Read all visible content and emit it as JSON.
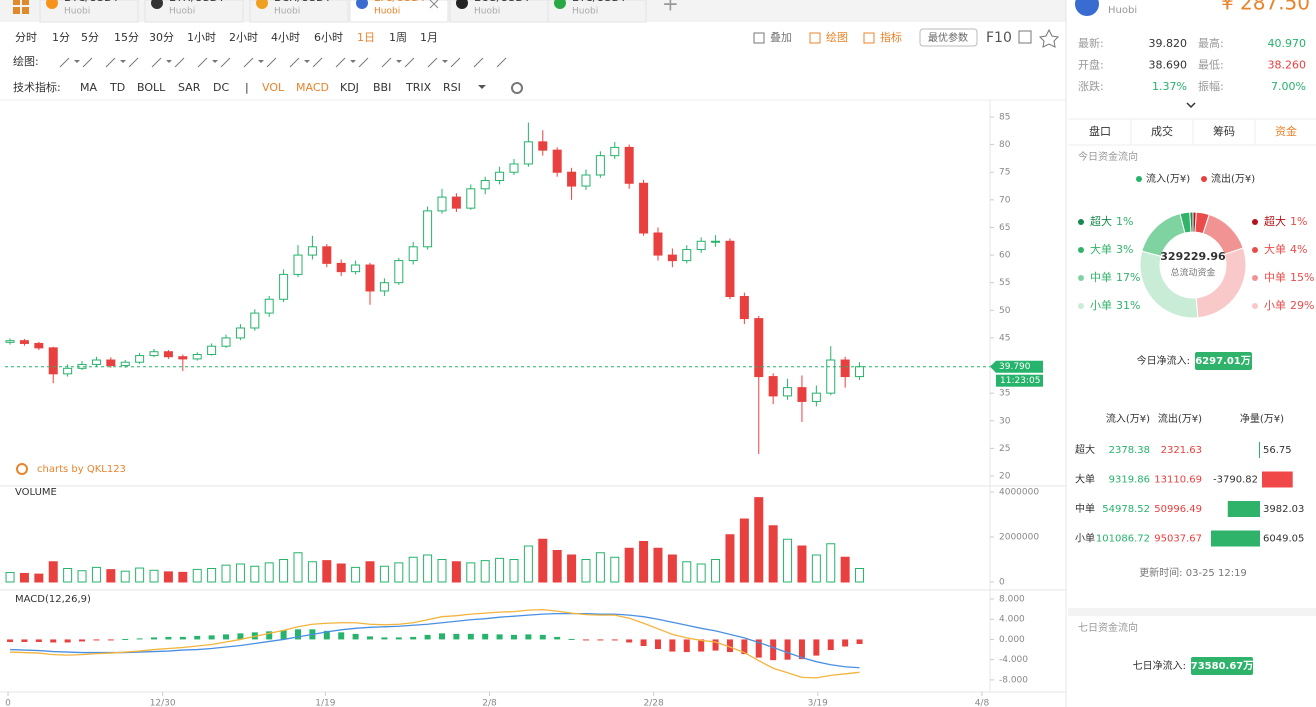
{
  "tabs": [
    {
      "name": "BTC/USDT",
      "exchange": "Huobi"
    },
    {
      "name": "ETH/USDT",
      "exchange": "Huobi"
    },
    {
      "name": "BCH/USDT",
      "exchange": "Huobi"
    },
    {
      "name": "LTC/USDT",
      "exchange": "Huobi"
    },
    {
      "name": "EOS/USDT",
      "exchange": "Huobi"
    },
    {
      "name": "ETC/USDT",
      "exchange": "Huobi"
    }
  ],
  "toolbar": {
    "periods": [
      "分时",
      "1分",
      "5分",
      "15分",
      "30分",
      "1小时",
      "2小时",
      "4小时",
      "6小时",
      "1日",
      "1周",
      "1月"
    ],
    "active_period": 9,
    "tools": [
      "叠加",
      "绘图",
      "指标"
    ],
    "best_params": "最优参数",
    "f10": "F10"
  },
  "draw_label": "绘图:",
  "indicators": {
    "label": "技术指标:",
    "main": [
      "MA",
      "TD",
      "BOLL",
      "SAR",
      "DC"
    ],
    "separator": "|",
    "sub": [
      "VOL",
      "MACD",
      "KDJ",
      "BBI",
      "TRIX",
      "RSI"
    ]
  },
  "chart_data": [
    {
      "type": "candlestick",
      "watermark": "charts by QKL123",
      "up_color": "#26b36b",
      "down_color": "#e8403f",
      "ohlc": [
        [
          44.2,
          44.9,
          43.8,
          44.5
        ],
        [
          44.5,
          44.8,
          43.6,
          44.0
        ],
        [
          44.0,
          44.3,
          42.8,
          43.2
        ],
        [
          43.2,
          43.4,
          36.8,
          38.5
        ],
        [
          38.5,
          40.2,
          38.0,
          39.5
        ],
        [
          39.5,
          40.8,
          39.2,
          40.2
        ],
        [
          40.2,
          41.6,
          39.8,
          41.0
        ],
        [
          41.0,
          41.5,
          39.6,
          40.0
        ],
        [
          40.0,
          41.0,
          39.6,
          40.6
        ],
        [
          40.6,
          42.3,
          40.3,
          41.8
        ],
        [
          41.8,
          43.0,
          41.5,
          42.5
        ],
        [
          42.5,
          42.8,
          41.2,
          41.6
        ],
        [
          41.6,
          42.0,
          39.0,
          41.2
        ],
        [
          41.2,
          42.4,
          40.9,
          42.0
        ],
        [
          42.0,
          44.0,
          41.8,
          43.5
        ],
        [
          43.5,
          45.6,
          43.2,
          45.0
        ],
        [
          45.0,
          47.5,
          44.6,
          46.8
        ],
        [
          46.8,
          50.2,
          46.3,
          49.5
        ],
        [
          49.5,
          52.6,
          48.8,
          52.0
        ],
        [
          52.0,
          57.4,
          51.5,
          56.5
        ],
        [
          56.5,
          61.8,
          56.0,
          60.0
        ],
        [
          60.0,
          63.5,
          59.2,
          61.5
        ],
        [
          61.5,
          62.0,
          57.8,
          58.5
        ],
        [
          58.5,
          59.2,
          56.2,
          57.0
        ],
        [
          57.0,
          59.0,
          56.5,
          58.2
        ],
        [
          58.2,
          58.6,
          51.0,
          53.5
        ],
        [
          53.5,
          55.8,
          52.6,
          55.0
        ],
        [
          55.0,
          59.5,
          54.6,
          59.0
        ],
        [
          59.0,
          62.4,
          58.3,
          61.5
        ],
        [
          61.5,
          68.8,
          61.0,
          68.0
        ],
        [
          68.0,
          72.0,
          67.5,
          70.5
        ],
        [
          70.5,
          71.2,
          67.8,
          68.5
        ],
        [
          68.5,
          72.8,
          68.2,
          72.0
        ],
        [
          72.0,
          74.2,
          71.0,
          73.5
        ],
        [
          73.5,
          76.0,
          72.8,
          75.0
        ],
        [
          75.0,
          77.4,
          74.5,
          76.5
        ],
        [
          76.5,
          84.0,
          76.0,
          80.5
        ],
        [
          80.5,
          82.6,
          78.0,
          79.0
        ],
        [
          79.0,
          79.5,
          74.2,
          75.0
        ],
        [
          75.0,
          75.8,
          70.0,
          72.5
        ],
        [
          72.5,
          75.5,
          71.8,
          74.5
        ],
        [
          74.5,
          78.8,
          74.0,
          78.0
        ],
        [
          78.0,
          80.5,
          77.4,
          79.5
        ],
        [
          79.5,
          80.0,
          72.0,
          73.0
        ],
        [
          73.0,
          73.6,
          63.5,
          64.0
        ],
        [
          64.0,
          65.0,
          59.0,
          60.0
        ],
        [
          60.0,
          61.2,
          57.8,
          59.0
        ],
        [
          59.0,
          61.8,
          58.5,
          61.0
        ],
        [
          61.0,
          63.2,
          60.4,
          62.5
        ],
        [
          62.5,
          63.6,
          61.5,
          62.5
        ],
        [
          62.5,
          63.0,
          52.0,
          52.5
        ],
        [
          52.5,
          53.2,
          47.5,
          48.5
        ],
        [
          48.5,
          49.0,
          24.0,
          38.0
        ],
        [
          38.0,
          38.6,
          33.0,
          34.5
        ],
        [
          34.5,
          37.6,
          33.8,
          36.0
        ],
        [
          36.0,
          38.2,
          29.8,
          33.5
        ],
        [
          33.5,
          36.4,
          32.6,
          35.0
        ],
        [
          35.0,
          43.5,
          34.6,
          41.0
        ],
        [
          41.0,
          41.6,
          36.0,
          38.0
        ],
        [
          38.0,
          40.6,
          37.4,
          39.79
        ]
      ],
      "xlim": [
        -0.35,
        68.06
      ],
      "xticks": [
        {
          "value": -0.14,
          "label": "0"
        },
        {
          "value": 10.6,
          "label": "12/30"
        },
        {
          "value": 21.9,
          "label": "1/19"
        },
        {
          "value": 33.3,
          "label": "2/8"
        },
        {
          "value": 44.7,
          "label": "2/28"
        },
        {
          "value": 56.1,
          "label": "3/19"
        },
        {
          "value": 67.5,
          "label": "4/8"
        }
      ],
      "ylim": [
        18.37,
        88.08
      ],
      "yticks": [
        20,
        25,
        30,
        35,
        40,
        45,
        50,
        55,
        60,
        65,
        70,
        75,
        80,
        85
      ],
      "last_price": {
        "value": 39.79,
        "label": "39.790"
      },
      "time": "11:23:05"
    },
    {
      "type": "bar",
      "title": "VOLUME",
      "values": [
        420000,
        380000,
        350000,
        900000,
        600000,
        500000,
        650000,
        550000,
        480000,
        620000,
        520000,
        450000,
        430000,
        560000,
        600000,
        750000,
        800000,
        700000,
        850000,
        1000000,
        1300000,
        900000,
        950000,
        800000,
        650000,
        900000,
        700000,
        850000,
        1100000,
        1200000,
        1000000,
        900000,
        850000,
        950000,
        1050000,
        1000000,
        1600000,
        1900000,
        1400000,
        1200000,
        1000000,
        1300000,
        1100000,
        1500000,
        1800000,
        1500000,
        1200000,
        900000,
        800000,
        1000000,
        2100000,
        2800000,
        3750000,
        2500000,
        1900000,
        1600000,
        1200000,
        1700000,
        1100000,
        600000
      ],
      "ylim": [
        0,
        4200000
      ],
      "yticks": [
        0,
        2000000,
        4000000
      ]
    },
    {
      "type": "line",
      "title": "MACD(12,26,9)",
      "dif_color": "#f2b43c",
      "dea_color": "#4a90e2",
      "dif": [
        -2.5,
        -2.6,
        -2.7,
        -3.0,
        -3.1,
        -3.0,
        -2.8,
        -2.7,
        -2.5,
        -2.3,
        -2.0,
        -1.8,
        -1.6,
        -1.3,
        -1.0,
        -0.5,
        0.0,
        0.6,
        1.2,
        1.8,
        2.5,
        3.0,
        3.2,
        3.3,
        3.3,
        3.0,
        2.9,
        3.0,
        3.3,
        3.9,
        4.5,
        4.7,
        5.0,
        5.2,
        5.4,
        5.5,
        5.8,
        5.9,
        5.6,
        5.2,
        4.9,
        4.8,
        4.8,
        4.2,
        3.2,
        2.1,
        1.0,
        0.3,
        -0.2,
        -0.5,
        -1.5,
        -2.6,
        -4.2,
        -5.7,
        -6.6,
        -7.5,
        -7.6,
        -7.1,
        -6.8,
        -6.5
      ],
      "dea": [
        -2.0,
        -2.1,
        -2.2,
        -2.4,
        -2.5,
        -2.6,
        -2.6,
        -2.6,
        -2.6,
        -2.5,
        -2.4,
        -2.3,
        -2.1,
        -2.0,
        -1.8,
        -1.5,
        -1.2,
        -0.8,
        -0.4,
        0.0,
        0.5,
        1.0,
        1.5,
        1.9,
        2.2,
        2.4,
        2.5,
        2.6,
        2.8,
        3.0,
        3.3,
        3.6,
        3.9,
        4.1,
        4.4,
        4.6,
        4.8,
        5.0,
        5.1,
        5.1,
        5.1,
        5.0,
        5.0,
        4.8,
        4.5,
        4.0,
        3.4,
        2.8,
        2.2,
        1.7,
        1.0,
        0.3,
        -0.6,
        -1.6,
        -2.6,
        -3.6,
        -4.4,
        -5.0,
        -5.4,
        -5.6
      ],
      "hist": [
        -0.5,
        -0.5,
        -0.5,
        -0.6,
        -0.6,
        -0.4,
        -0.2,
        -0.1,
        0.1,
        0.2,
        0.4,
        0.5,
        0.5,
        0.7,
        0.8,
        1.0,
        1.2,
        1.4,
        1.6,
        1.8,
        2.0,
        2.0,
        1.7,
        1.4,
        1.1,
        0.6,
        0.4,
        0.4,
        0.5,
        0.9,
        1.2,
        1.1,
        1.1,
        1.1,
        1.0,
        0.9,
        1.0,
        0.9,
        0.5,
        0.1,
        -0.2,
        -0.2,
        -0.2,
        -0.6,
        -1.3,
        -1.9,
        -2.4,
        -2.5,
        -2.4,
        -2.2,
        -2.5,
        -2.9,
        -3.6,
        -4.1,
        -4.0,
        -3.9,
        -3.2,
        -2.1,
        -1.4,
        -0.9
      ],
      "ylim": [
        -10,
        9.38
      ],
      "yticks": [
        {
          "value": 8,
          "label": "8.000"
        },
        {
          "value": 4,
          "label": "4.000"
        },
        {
          "value": 0,
          "label": "0.000"
        },
        {
          "value": -4,
          "label": "-4.000"
        },
        {
          "value": -8,
          "label": "-8.000"
        }
      ]
    }
  ],
  "panel": {
    "exchange": "Huobi",
    "price": "¥ 287.50",
    "stats": [
      [
        "最新:",
        "39.820",
        "最高:",
        "40.970"
      ],
      [
        "开盘:",
        "38.690",
        "最低:",
        "38.260"
      ],
      [
        "涨跌:",
        "1.37%",
        "振幅:",
        "7.00%"
      ]
    ],
    "tabs": [
      "盘口",
      "成交",
      "筹码",
      "资金"
    ],
    "today_title": "今日资金流向",
    "legend_in": "流入(万¥)",
    "legend_out": "流出(万¥)",
    "names": [
      "超大",
      "大单",
      "中单",
      "小单"
    ],
    "inflow": {
      "values": [
        1,
        3,
        17,
        31
      ],
      "value_labels": [
        "1%",
        "3%",
        "17%",
        "31%"
      ]
    },
    "outflow": {
      "values": [
        1,
        4,
        15,
        29
      ],
      "value_labels": [
        "1%",
        "4%",
        "15%",
        "29%"
      ]
    },
    "total": "329229.96",
    "total_label": "总流动资金",
    "net_today_label": "今日净流入:",
    "net_today": "6297.01万",
    "table_header": [
      "流入(万¥)",
      "流出(万¥)",
      "净量(万¥)"
    ],
    "rows": [
      {
        "name": "超大",
        "in": 2378.38,
        "out": 2321.63,
        "net": 56.75
      },
      {
        "name": "大单",
        "in": 9319.86,
        "out": 13110.69,
        "net": -3790.82
      },
      {
        "name": "中单",
        "in": 54978.52,
        "out": 50996.49,
        "net": 3982.03
      },
      {
        "name": "小单",
        "in": 101086.72,
        "out": 95037.67,
        "net": 6049.05
      }
    ],
    "updated": "更新时间: 03-25 12:19",
    "week_title": "七日资金流向",
    "net_week_label": "七日净流入:",
    "net_week": "73580.67万"
  }
}
